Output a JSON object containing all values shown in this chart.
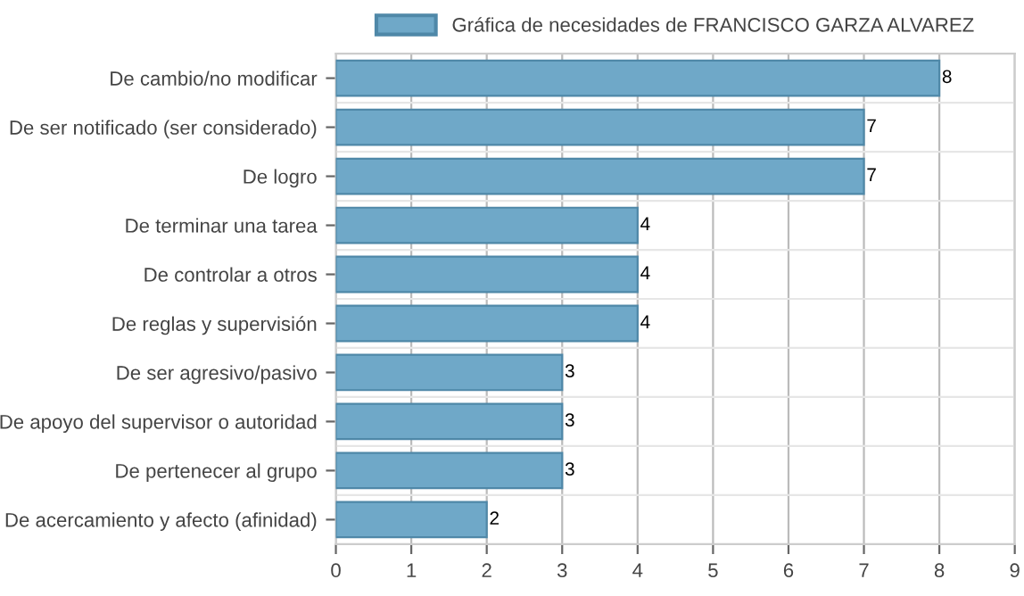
{
  "chart_data": {
    "type": "bar",
    "orientation": "horizontal",
    "categories": [
      "De cambio/no modificar",
      "De ser notificado (ser considerado)",
      "De logro",
      "De terminar una tarea",
      "De controlar a otros",
      "De reglas y supervisión",
      "De ser agresivo/pasivo",
      "De apoyo del supervisor o autoridad",
      "De pertenecer al grupo",
      "De acercamiento y afecto (afinidad)"
    ],
    "series": [
      {
        "name": "Gráfica de necesidades de FRANCISCO GARZA ALVAREZ",
        "color": "#6fa8c8",
        "values": [
          8,
          7,
          7,
          4,
          4,
          4,
          3,
          3,
          3,
          2
        ]
      }
    ],
    "xlim": [
      0,
      9
    ],
    "xticks": [
      0,
      1,
      2,
      3,
      4,
      5,
      6,
      7,
      8,
      9
    ],
    "grid": true,
    "legend": "top",
    "data_labels": true
  }
}
